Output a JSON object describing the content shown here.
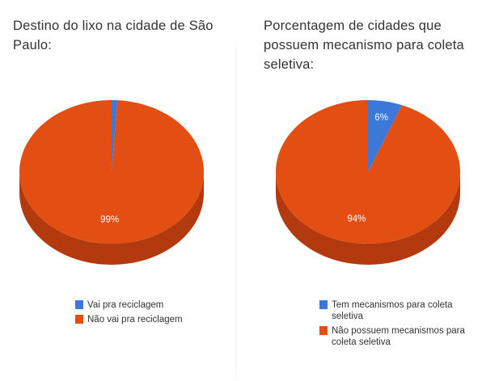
{
  "chart_data": [
    {
      "type": "pie",
      "title": "Destino do lixo na cidade de São Paulo:",
      "slices": [
        {
          "label": "Vai pra reciclagem",
          "value": 1,
          "display": "",
          "color": "#3b78d8"
        },
        {
          "label": "Não vai pra reciclagem",
          "value": 99,
          "display": "99%",
          "color": "#e34e12"
        }
      ],
      "legend_position": "bottom",
      "three_d": true
    },
    {
      "type": "pie",
      "title": "Porcentagem de cidades que possuem mecanismo para coleta seletiva:",
      "slices": [
        {
          "label": "Tem mecanismos para coleta seletiva",
          "value": 6,
          "display": "6%",
          "color": "#3b78d8"
        },
        {
          "label": "Não possuem mecanismos para coleta seletiva",
          "value": 94,
          "display": "94%",
          "color": "#e34e12"
        }
      ],
      "legend_position": "bottom",
      "three_d": true
    }
  ]
}
